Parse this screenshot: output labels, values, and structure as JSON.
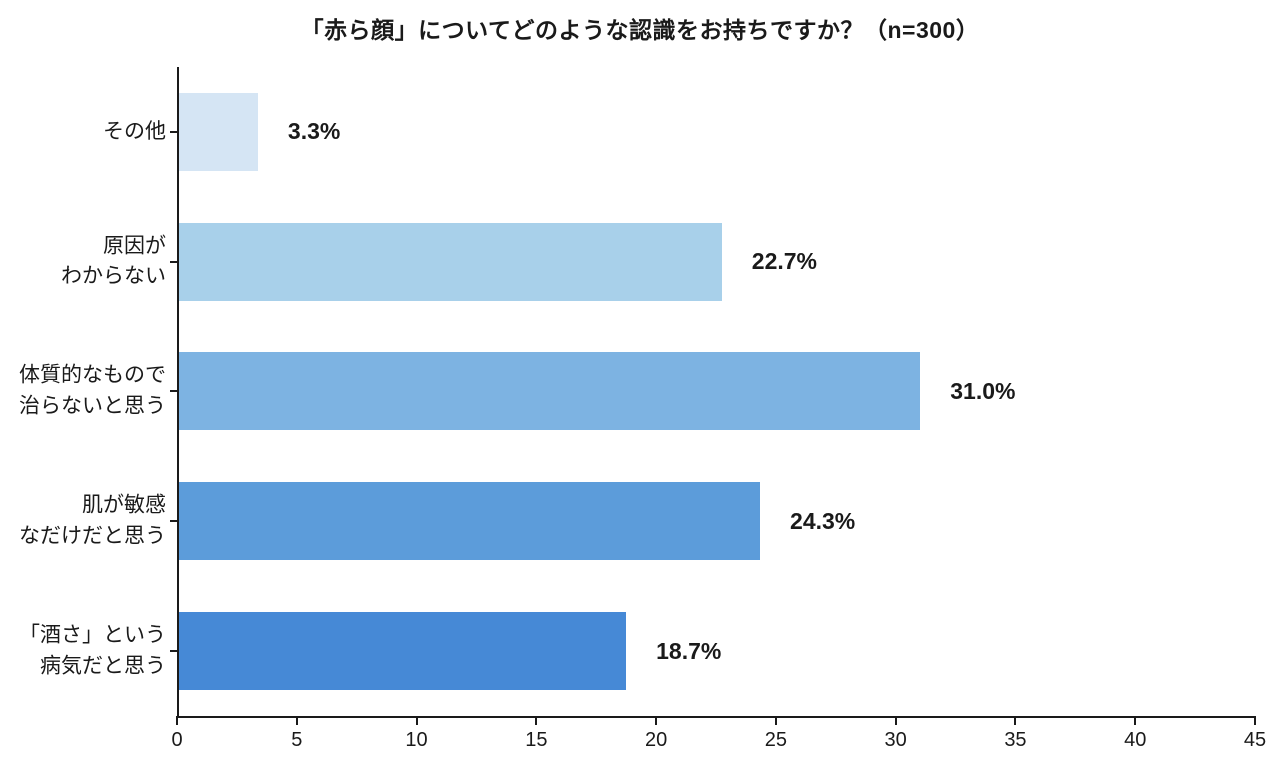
{
  "chart_data": {
    "type": "bar",
    "orientation": "horizontal",
    "title": "「赤ら顔」についてどのような認識をお持ちですか？（n=300）",
    "categories": [
      {
        "label_lines": [
          "その他"
        ],
        "value": 3.3,
        "value_label": "3.3%",
        "color": "#d5e5f4"
      },
      {
        "label_lines": [
          "原因が",
          "わからない"
        ],
        "value": 22.7,
        "value_label": "22.7%",
        "color": "#a8d0ea"
      },
      {
        "label_lines": [
          "体質的なもので",
          "治らないと思う"
        ],
        "value": 31.0,
        "value_label": "31.0%",
        "color": "#7db3e2"
      },
      {
        "label_lines": [
          "肌が敏感",
          "なだけだと思う"
        ],
        "value": 24.3,
        "value_label": "24.3%",
        "color": "#5c9cda"
      },
      {
        "label_lines": [
          "「酒さ」という",
          "病気だと思う"
        ],
        "value": 18.7,
        "value_label": "18.7%",
        "color": "#4689d6"
      }
    ],
    "xlabel": "",
    "ylabel": "",
    "xlim": [
      0,
      45
    ],
    "x_ticks": [
      0,
      5,
      10,
      15,
      20,
      25,
      30,
      35,
      40,
      45
    ],
    "grid": false,
    "legend": false,
    "axis_color": "#1a1a1a",
    "text_color": "#1a1a1a",
    "background_color": "#ffffff"
  }
}
